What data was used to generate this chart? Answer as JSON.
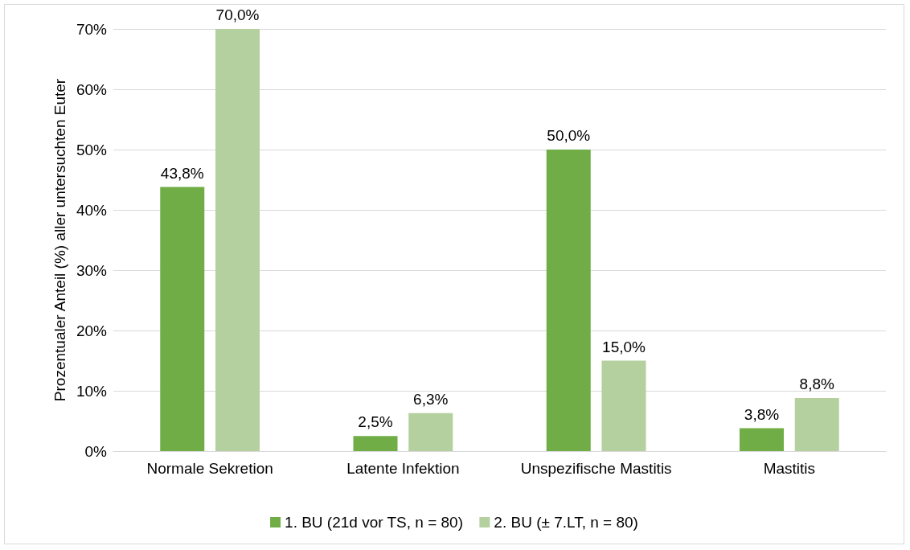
{
  "chart_data": {
    "type": "bar",
    "ylabel": "Prozentualer Anteil (%) aller untersuchten Euter",
    "categories": [
      "Normale Sekretion",
      "Latente Infektion",
      "Unspezifische Mastitis",
      "Mastitis"
    ],
    "series": [
      {
        "name": "1. BU (21d vor TS, n = 80)",
        "color": "#70ad47",
        "values": [
          43.8,
          2.5,
          50.0,
          3.8
        ],
        "value_labels": [
          "43,8%",
          "2,5%",
          "50,0%",
          "3,8%"
        ]
      },
      {
        "name": "2. BU (± 7.LT, n = 80)",
        "color": "#b4d09e",
        "values": [
          70.0,
          6.3,
          15.0,
          8.8
        ],
        "value_labels": [
          "70,0%",
          "6,3%",
          "15,0%",
          "8,8%"
        ]
      }
    ],
    "ylim": [
      0,
      70
    ],
    "yticks": [
      {
        "value": 0,
        "label": "0%"
      },
      {
        "value": 10,
        "label": "10%"
      },
      {
        "value": 20,
        "label": "20%"
      },
      {
        "value": 30,
        "label": "30%"
      },
      {
        "value": 40,
        "label": "40%"
      },
      {
        "value": 50,
        "label": "50%"
      },
      {
        "value": 60,
        "label": "60%"
      },
      {
        "value": 70,
        "label": "70%"
      }
    ],
    "grid": "y",
    "legend": "bottom"
  }
}
